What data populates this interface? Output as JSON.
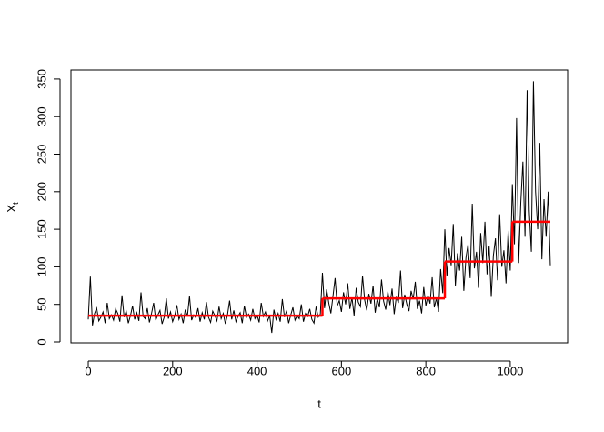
{
  "chart_data": {
    "type": "line",
    "xlabel": "t",
    "ylabel": "X",
    "ylabel_subscript": "t",
    "xlim": [
      -41,
      1136
    ],
    "ylim": [
      -1.2,
      362
    ],
    "xticks": [
      0,
      200,
      400,
      600,
      800,
      1000
    ],
    "yticks": [
      0,
      50,
      100,
      150,
      200,
      250,
      300,
      350
    ],
    "x": [
      0,
      5,
      10,
      15,
      20,
      25,
      30,
      35,
      40,
      45,
      50,
      55,
      60,
      65,
      70,
      75,
      80,
      85,
      90,
      95,
      100,
      105,
      110,
      115,
      120,
      125,
      130,
      135,
      140,
      145,
      150,
      155,
      160,
      165,
      170,
      175,
      180,
      185,
      190,
      195,
      200,
      205,
      210,
      215,
      220,
      225,
      230,
      235,
      240,
      245,
      250,
      255,
      260,
      265,
      270,
      275,
      280,
      285,
      290,
      295,
      300,
      305,
      310,
      315,
      320,
      325,
      330,
      335,
      340,
      345,
      350,
      355,
      360,
      365,
      370,
      375,
      380,
      385,
      390,
      395,
      400,
      405,
      410,
      415,
      420,
      425,
      430,
      435,
      440,
      445,
      450,
      455,
      460,
      465,
      470,
      475,
      480,
      485,
      490,
      495,
      500,
      505,
      510,
      515,
      520,
      525,
      530,
      535,
      540,
      545,
      550,
      555,
      560,
      565,
      570,
      575,
      580,
      585,
      590,
      595,
      600,
      605,
      610,
      615,
      620,
      625,
      630,
      635,
      640,
      645,
      650,
      655,
      660,
      665,
      670,
      675,
      680,
      685,
      690,
      695,
      700,
      705,
      710,
      715,
      720,
      725,
      730,
      735,
      740,
      745,
      750,
      755,
      760,
      765,
      770,
      775,
      780,
      785,
      790,
      795,
      800,
      805,
      810,
      815,
      820,
      825,
      830,
      835,
      840,
      845,
      850,
      855,
      860,
      865,
      870,
      875,
      880,
      885,
      890,
      895,
      900,
      905,
      910,
      915,
      920,
      925,
      930,
      935,
      940,
      945,
      950,
      955,
      960,
      965,
      970,
      975,
      980,
      985,
      990,
      995,
      1000,
      1005,
      1010,
      1015,
      1020,
      1025,
      1030,
      1035,
      1040,
      1045,
      1050,
      1055,
      1060,
      1065,
      1070,
      1075,
      1080,
      1085,
      1090,
      1095
    ],
    "series": [
      {
        "color": "#000000",
        "values": [
          30,
          87,
          22,
          38,
          45,
          28,
          33,
          40,
          25,
          52,
          31,
          36,
          29,
          44,
          38,
          27,
          62,
          33,
          41,
          25,
          35,
          48,
          30,
          39,
          28,
          66,
          34,
          31,
          45,
          26,
          38,
          52,
          29,
          36,
          42,
          24,
          33,
          58,
          31,
          40,
          27,
          35,
          49,
          30,
          37,
          25,
          43,
          34,
          61,
          29,
          36,
          32,
          45,
          27,
          39,
          30,
          53,
          33,
          26,
          41,
          35,
          28,
          47,
          31,
          38,
          24,
          36,
          55,
          30,
          42,
          27,
          34,
          39,
          25,
          48,
          33,
          37,
          29,
          44,
          31,
          36,
          26,
          52,
          34,
          40,
          28,
          35,
          12,
          43,
          30,
          38,
          27,
          57,
          33,
          41,
          25,
          36,
          46,
          29,
          35,
          31,
          50,
          27,
          38,
          34,
          44,
          30,
          25,
          47,
          33,
          37,
          92,
          45,
          70,
          52,
          38,
          61,
          85,
          48,
          55,
          40,
          66,
          50,
          78,
          44,
          59,
          35,
          72,
          53,
          47,
          88,
          56,
          42,
          64,
          51,
          75,
          39,
          58,
          46,
          83,
          54,
          43,
          67,
          49,
          71,
          37,
          60,
          52,
          95,
          45,
          63,
          50,
          41,
          68,
          57,
          80,
          44,
          55,
          38,
          73,
          48,
          62,
          51,
          86,
          46,
          58,
          40,
          97,
          65,
          150,
          88,
          125,
          102,
          157,
          75,
          118,
          95,
          140,
          68,
          112,
          130,
          85,
          184,
          98,
          120,
          72,
          145,
          105,
          160,
          90,
          128,
          60,
          115,
          138,
          82,
          170,
          100,
          122,
          78,
          148,
          95,
          210,
          130,
          298,
          105,
          185,
          240,
          140,
          335,
          175,
          120,
          347,
          200,
          150,
          265,
          110,
          190,
          140,
          200,
          102
        ]
      }
    ],
    "step": {
      "color": "#ff0000",
      "breaks": [
        0,
        555,
        845,
        1005,
        1095
      ],
      "values": [
        35,
        58,
        107,
        160
      ]
    }
  }
}
